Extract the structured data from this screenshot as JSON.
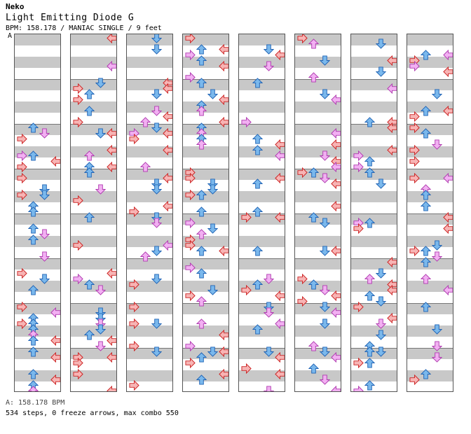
{
  "header": {
    "artist": "Neko",
    "song_title": "Light Emitting Diode G",
    "chart_info": "BPM: 158.178 / MANIAC SINGLE / 9 feet",
    "bpm_marker": "A"
  },
  "footer": {
    "bpm_line": "A: 158.178 BPM",
    "stats_line": "534 steps, 0 freeze arrows, max combo 550"
  },
  "colors": {
    "stripe_gray": "#c8c8c8",
    "red_arrow_fill": "#f7b4b4",
    "red_arrow_stroke": "#cc2222",
    "blue_arrow_fill": "#7ab8ec",
    "blue_arrow_stroke": "#1f63b5",
    "pink_arrow_fill": "#f2b0f2",
    "pink_arrow_stroke": "#b03bb0"
  },
  "icons": [
    "left-arrow-icon",
    "down-arrow-icon",
    "up-arrow-icon",
    "right-arrow-icon"
  ],
  "columns_count": 8
}
